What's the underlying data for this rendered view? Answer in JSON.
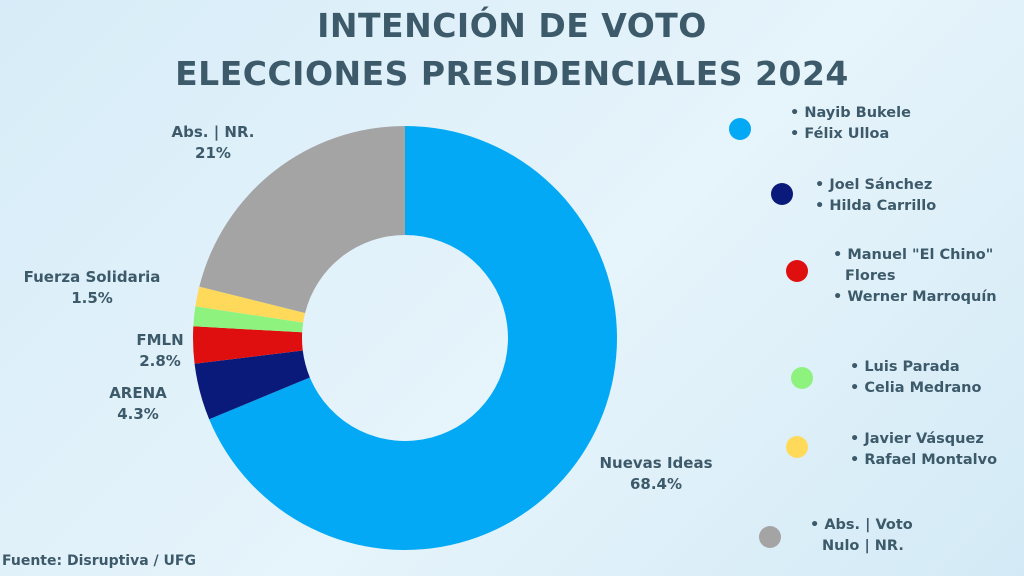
{
  "title_line1": "INTENCIÓN DE VOTO",
  "title_line2": "ELECCIONES PRESIDENCIALES 2024",
  "source": "Fuente: Disruptiva / UFG",
  "chart_data": {
    "type": "pie",
    "style": "donut",
    "slices": [
      {
        "label": "Nuevas Ideas",
        "value_label": "68.4%",
        "value": 68.4,
        "color": "#03a9f4"
      },
      {
        "label": "ARENA",
        "value_label": "4.3%",
        "value": 4.3,
        "color": "#0a1a7a"
      },
      {
        "label": "FMLN",
        "value_label": "2.8%",
        "value": 2.8,
        "color": "#e00f0f"
      },
      {
        "label": "",
        "value_label": "",
        "value": 1.5,
        "color": "#8ef27e"
      },
      {
        "label": "Fuerza Solidaria",
        "value_label": "1.5%",
        "value": 1.5,
        "color": "#ffd95a"
      },
      {
        "label": "Abs. | NR.",
        "value_label": "21%",
        "value": 21,
        "color": "#a4a4a4"
      }
    ]
  },
  "legend": [
    {
      "color": "#03a9f4",
      "lines": [
        "• Nayib Bukele",
        "• Félix Ulloa"
      ]
    },
    {
      "color": "#0a1a7a",
      "lines": [
        "• Joel Sánchez",
        "• Hilda Carrillo"
      ]
    },
    {
      "color": "#e00f0f",
      "lines": [
        "• Manuel \"El Chino\"",
        "Flores",
        "• Werner Marroquín"
      ]
    },
    {
      "color": "#8ef27e",
      "lines": [
        "• Luis Parada",
        "• Celia Medrano"
      ]
    },
    {
      "color": "#ffd95a",
      "lines": [
        "• Javier Vásquez",
        "• Rafael Montalvo"
      ]
    },
    {
      "color": "#a4a4a4",
      "lines": [
        "• Abs. | Voto",
        "Nulo | NR."
      ]
    }
  ]
}
